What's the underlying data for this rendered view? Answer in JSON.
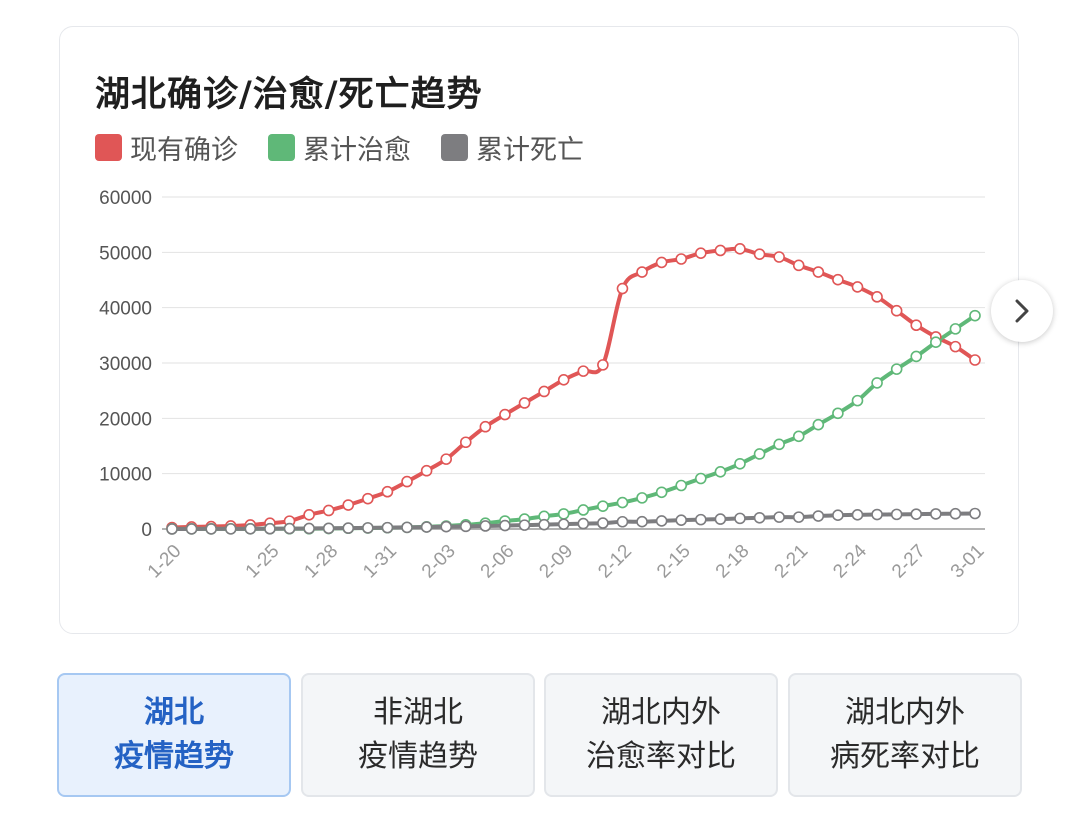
{
  "title": "湖北确诊/治愈/死亡趋势",
  "legend": [
    {
      "label": "现有确诊",
      "color": "#e05656"
    },
    {
      "label": "累计治愈",
      "color": "#5fb878"
    },
    {
      "label": "累计死亡",
      "color": "#7d7d80"
    }
  ],
  "next_icon": "chevron-right-icon",
  "tabs": [
    {
      "line1": "湖北",
      "line2": "疫情趋势",
      "active": true
    },
    {
      "line1": "非湖北",
      "line2": "疫情趋势",
      "active": false
    },
    {
      "line1": "湖北内外",
      "line2": "治愈率对比",
      "active": false
    },
    {
      "line1": "湖北内外",
      "line2": "病死率对比",
      "active": false
    }
  ],
  "chart_data": {
    "type": "line",
    "ylim": [
      0,
      60000
    ],
    "yticks": [
      60000,
      50000,
      40000,
      30000,
      20000,
      10000,
      0
    ],
    "xticklabels": [
      "1-20",
      "1-25",
      "1-28",
      "1-31",
      "2-03",
      "2-06",
      "2-09",
      "2-12",
      "2-15",
      "2-18",
      "2-21",
      "2-24",
      "2-27",
      "3-01"
    ],
    "x": [
      "1-20",
      "1-21",
      "1-22",
      "1-23",
      "1-24",
      "1-25",
      "1-26",
      "1-27",
      "1-28",
      "1-29",
      "1-30",
      "1-31",
      "2-01",
      "2-02",
      "2-03",
      "2-04",
      "2-05",
      "2-06",
      "2-07",
      "2-08",
      "2-09",
      "2-10",
      "2-11",
      "2-12",
      "2-13",
      "2-14",
      "2-15",
      "2-16",
      "2-17",
      "2-18",
      "2-19",
      "2-20",
      "2-21",
      "2-22",
      "2-23",
      "2-24",
      "2-25",
      "2-26",
      "2-27",
      "2-28",
      "2-29",
      "3-01"
    ],
    "series": [
      {
        "name": "现有确诊",
        "color": "#e05656",
        "values": [
          270,
          375,
          444,
          549,
          729,
          1052,
          1423,
          2567,
          3349,
          4334,
          5486,
          6738,
          8565,
          10532,
          12627,
          15677,
          18483,
          20677,
          22776,
          24853,
          26965,
          28532,
          29659,
          43455,
          46439,
          48175,
          48796,
          49847,
          50338,
          50633,
          49665,
          49156,
          47647,
          46439,
          45054,
          43745,
          41957,
          39447,
          36829,
          34715,
          32959,
          30543
        ]
      },
      {
        "name": "累计治愈",
        "color": "#5fb878",
        "values": [
          25,
          28,
          28,
          31,
          32,
          42,
          44,
          47,
          80,
          134,
          171,
          224,
          294,
          390,
          540,
          760,
          1050,
          1440,
          1790,
          2290,
          2730,
          3440,
          4130,
          4774,
          5623,
          6639,
          7862,
          9128,
          10337,
          11788,
          13557,
          15299,
          16748,
          18854,
          20912,
          23200,
          26403,
          28895,
          31187,
          33757,
          36167,
          38556
        ]
      },
      {
        "name": "累计死亡",
        "color": "#7d7d80",
        "values": [
          6,
          9,
          17,
          24,
          39,
          52,
          76,
          100,
          125,
          162,
          204,
          249,
          294,
          350,
          414,
          479,
          549,
          618,
          699,
          780,
          871,
          974,
          1068,
          1310,
          1318,
          1457,
          1596,
          1696,
          1789,
          1921,
          2029,
          2144,
          2144,
          2346,
          2495,
          2563,
          2615,
          2641,
          2682,
          2727,
          2761,
          2803
        ]
      }
    ]
  }
}
